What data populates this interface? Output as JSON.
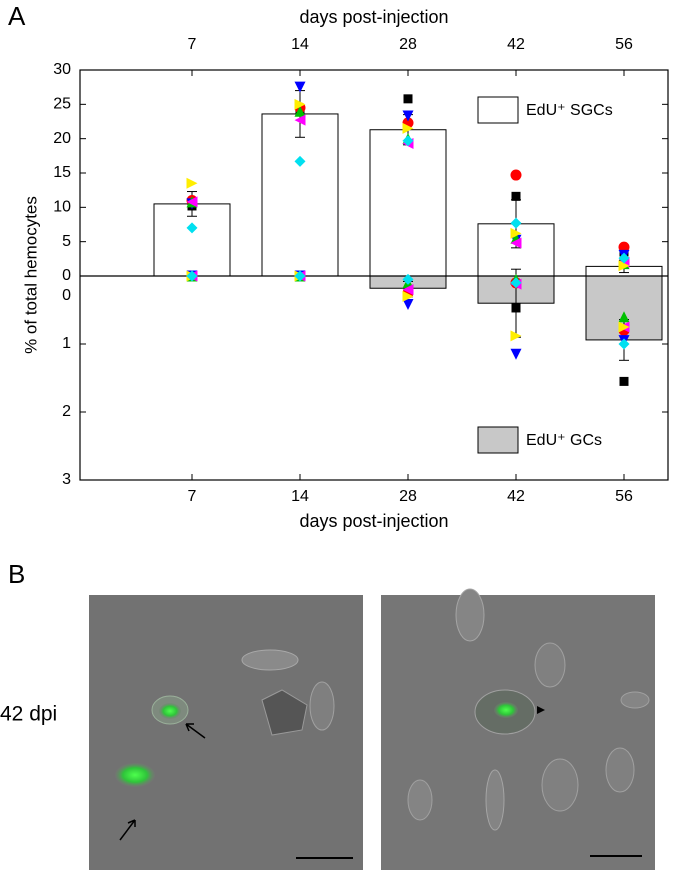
{
  "panel_labels": [
    "A",
    "B"
  ],
  "chart_data": {
    "type": "bar",
    "x_label_top": "days post-injection",
    "x_label": "days post-injection",
    "y_label": "% of total hemocytes",
    "categories": [
      "7",
      "14",
      "28",
      "42",
      "56"
    ],
    "ylim": [
      0,
      30
    ],
    "yticks": [
      0,
      5,
      10,
      15,
      20,
      25,
      30
    ],
    "y2lim": [
      0,
      3
    ],
    "y2ticks": [
      0,
      1,
      2,
      3
    ],
    "y2_inverted": true,
    "series": [
      {
        "name": "EdU⁺ SGCs",
        "color": "#ffffff",
        "values": [
          10.5,
          23.6,
          21.3,
          7.6,
          1.4
        ],
        "errors": [
          1.8,
          3.4,
          2.2,
          3.5,
          0.9
        ]
      },
      {
        "name": "EdU⁺ GCs",
        "color": "#c8c8c8",
        "axis": "y2",
        "values": [
          0,
          0,
          0.18,
          0.4,
          0.94
        ],
        "errors": [
          0,
          0,
          0.1,
          0.5,
          0.3
        ]
      }
    ],
    "points": [
      {
        "color": "#000000",
        "marker": "square",
        "values": [
          10.2,
          24,
          25.8,
          11.6,
          3.5
        ],
        "values_y2": [
          0,
          0,
          0.25,
          0.47,
          1.55
        ]
      },
      {
        "color": "#ff0000",
        "marker": "circle",
        "values": [
          11,
          24.5,
          22.3,
          14.7,
          4.2
        ],
        "values_y2": [
          0,
          0,
          0.25,
          0.1,
          0.8
        ]
      },
      {
        "color": "#0000ff",
        "marker": "triangle-down",
        "values": [
          10.5,
          27.5,
          23.3,
          5.2,
          3
        ],
        "values_y2": [
          0,
          0,
          0.42,
          1.15,
          0.95
        ]
      },
      {
        "color": "#00c000",
        "marker": "triangle-up",
        "values": [
          10.8,
          24,
          20,
          5.5,
          1.8
        ],
        "values_y2": [
          0,
          0,
          0.1,
          0.05,
          0.6
        ]
      },
      {
        "color": "#ff00ff",
        "marker": "triangle-left",
        "values": [
          10.8,
          22.7,
          19.3,
          4.8,
          2
        ],
        "values_y2": [
          0,
          0,
          0.2,
          0.12,
          0.75
        ]
      },
      {
        "color": "#ffee00",
        "marker": "triangle-right",
        "values": [
          13.5,
          25,
          21.5,
          6.2,
          1.5
        ],
        "values_y2": [
          0,
          0,
          0.3,
          0.88,
          0.75
        ]
      },
      {
        "color": "#00e0f0",
        "marker": "diamond",
        "values": [
          7,
          16.7,
          19.7,
          7.7,
          2.6
        ],
        "values_y2": [
          0,
          0,
          0.05,
          0.1,
          1.0
        ]
      }
    ]
  },
  "images": {
    "row_label": "42 dpi"
  }
}
